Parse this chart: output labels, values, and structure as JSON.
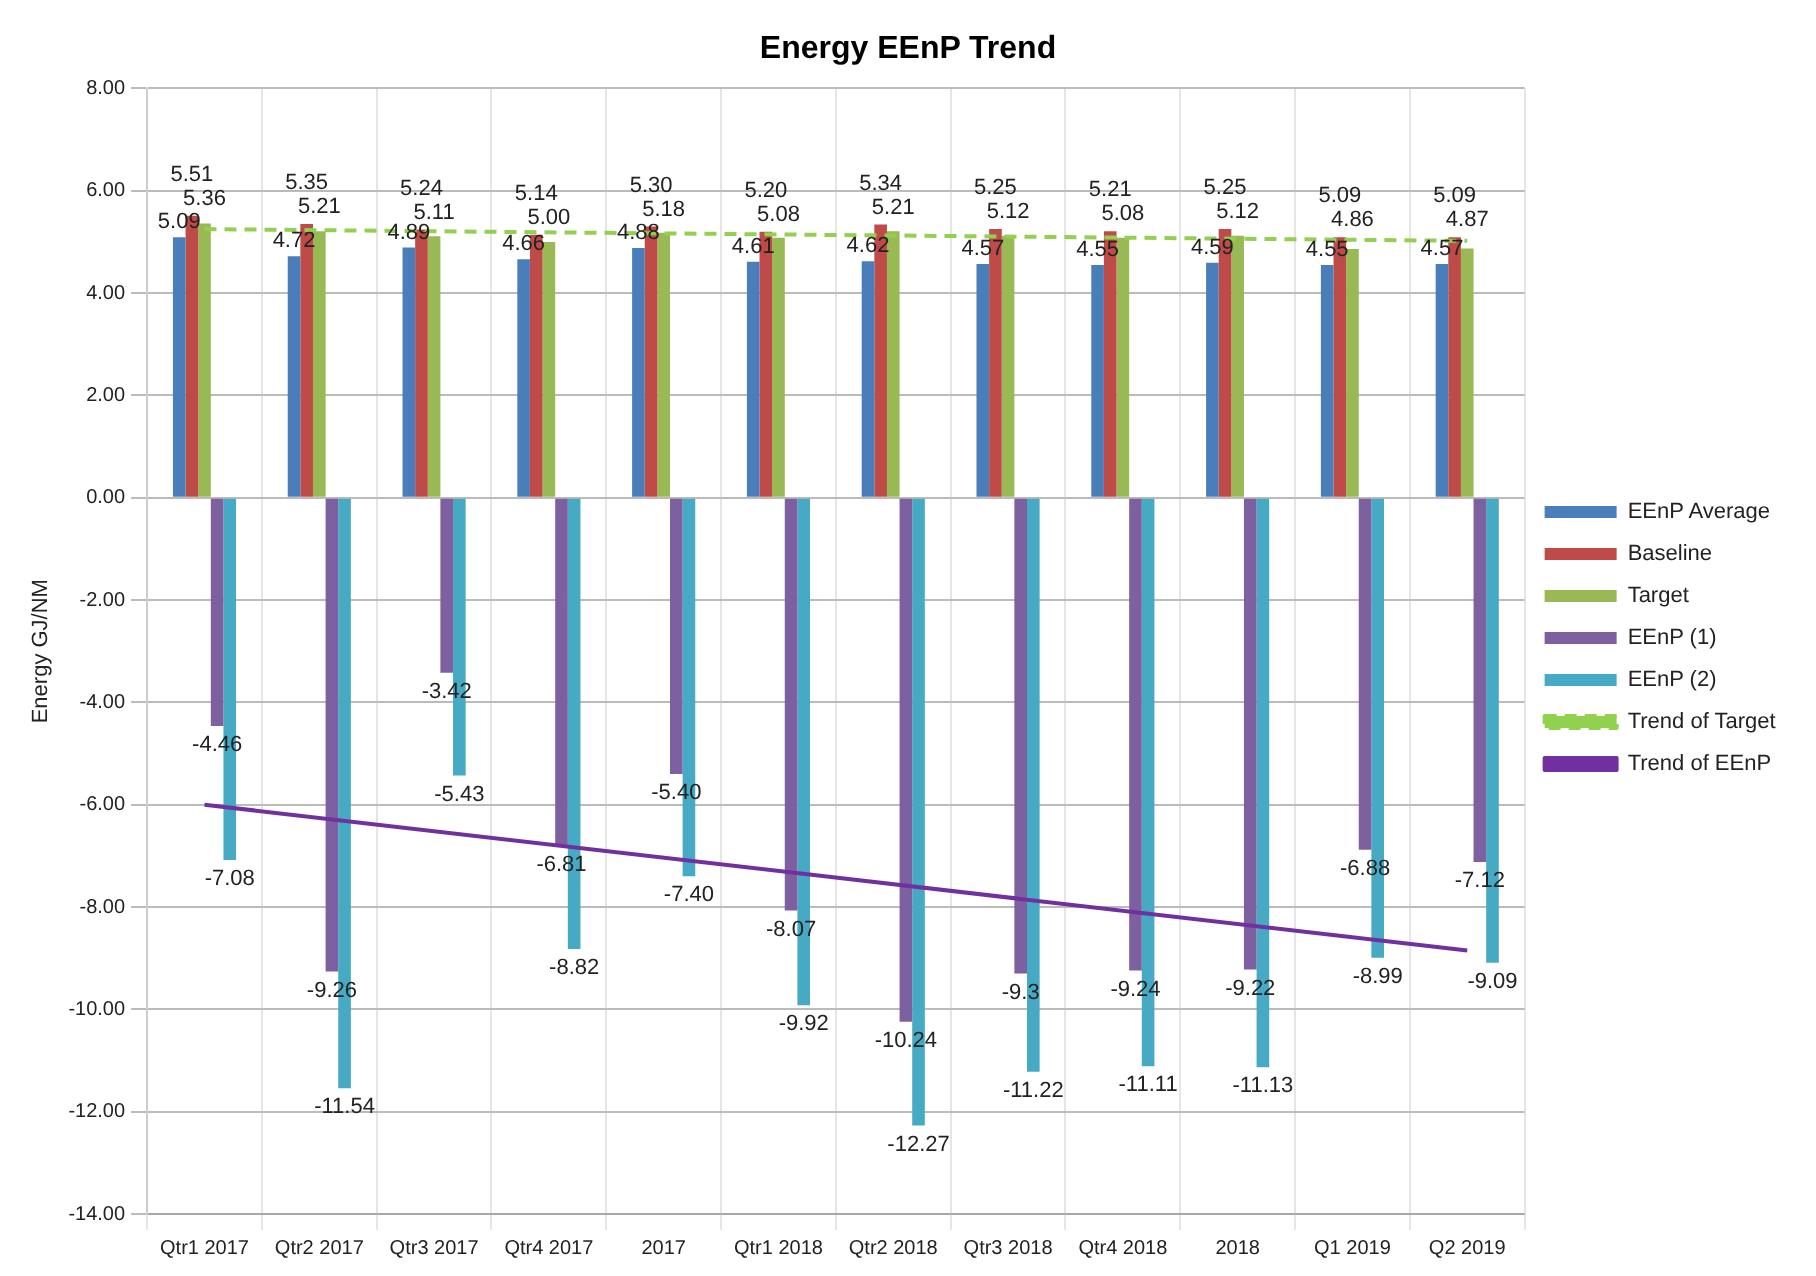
{
  "chart_data": {
    "type": "bar",
    "title": "Energy EEnP Trend",
    "ylabel": "Energy GJ/NM",
    "categories": [
      "Qtr1 2017",
      "Qtr2 2017",
      "Qtr3 2017",
      "Qtr4 2017",
      "2017",
      "Qtr1 2018",
      "Qtr2 2018",
      "Qtr3 2018",
      "Qtr4 2018",
      "2018",
      "Q1 2019",
      "Q2 2019"
    ],
    "series": [
      {
        "name": "EEnP Average",
        "color": "#4a7ebb",
        "values": [
          5.09,
          4.72,
          4.89,
          4.66,
          4.88,
          4.61,
          4.62,
          4.57,
          4.55,
          4.59,
          4.55,
          4.57
        ],
        "value_labels": [
          "5.09",
          "4.72",
          "4.89",
          "4.66",
          "4.88",
          "4.61",
          "4.62",
          "4.57",
          "4.55",
          "4.59",
          "4.55",
          "4.57"
        ]
      },
      {
        "name": "Baseline",
        "color": "#be4b48",
        "values": [
          5.51,
          5.35,
          5.24,
          5.14,
          5.3,
          5.2,
          5.34,
          5.25,
          5.21,
          5.25,
          5.09,
          5.09
        ],
        "value_labels": [
          "5.51",
          "5.35",
          "5.24",
          "5.14",
          "5.30",
          "5.20",
          "5.34",
          "5.25",
          "5.21",
          "5.25",
          "5.09",
          "5.09"
        ]
      },
      {
        "name": "Target",
        "color": "#98b954",
        "values": [
          5.36,
          5.21,
          5.11,
          5.0,
          5.18,
          5.08,
          5.21,
          5.12,
          5.08,
          5.12,
          4.86,
          4.87
        ],
        "value_labels": [
          "5.36",
          "5.21",
          "5.11",
          "5.00",
          "5.18",
          "5.08",
          "5.21",
          "5.12",
          "5.08",
          "5.12",
          "4.86",
          "4.87"
        ]
      },
      {
        "name": "EEnP (1)",
        "color": "#7d60a0",
        "values": [
          -4.46,
          -9.26,
          -3.42,
          -6.81,
          -5.4,
          -8.07,
          -10.24,
          -9.3,
          -9.24,
          -9.22,
          -6.88,
          -7.12
        ],
        "value_labels": [
          "-4.46",
          "-9.26",
          "-3.42",
          "-6.81",
          "-5.40",
          "-8.07",
          "-10.24",
          "-9.3",
          "-9.24",
          "-9.22",
          "-6.88",
          "-7.12"
        ]
      },
      {
        "name": "EEnP (2)",
        "color": "#46aac5",
        "values": [
          -7.08,
          -11.54,
          -5.43,
          -8.82,
          -7.4,
          -9.92,
          -12.27,
          -11.22,
          -11.11,
          -11.13,
          -8.99,
          -9.09
        ],
        "value_labels": [
          "-7.08",
          "-11.54",
          "-5.43",
          "-8.82",
          "-7.40",
          "-9.92",
          "-12.27",
          "-11.22",
          "-11.11",
          "-11.13",
          "-8.99",
          "-9.09"
        ]
      },
      {
        "name": "Trend of Target",
        "type": "line",
        "line_style": "dashed",
        "color": "#92d050",
        "values": [
          5.25,
          null,
          null,
          null,
          null,
          null,
          null,
          null,
          null,
          null,
          null,
          5.02
        ]
      },
      {
        "name": "Trend of EEnP",
        "type": "line",
        "line_style": "solid",
        "color": "#7030a0",
        "values": [
          -6.0,
          null,
          null,
          null,
          null,
          null,
          null,
          null,
          null,
          null,
          null,
          -8.85
        ]
      }
    ],
    "ylim": [
      -14,
      8
    ],
    "yticks": [
      {
        "value": -14,
        "label": "-14.00"
      },
      {
        "value": -12,
        "label": "-12.00"
      },
      {
        "value": -10,
        "label": "-10.00"
      },
      {
        "value": -8,
        "label": "-8.00"
      },
      {
        "value": -6,
        "label": "-6.00"
      },
      {
        "value": -4,
        "label": "-4.00"
      },
      {
        "value": -2,
        "label": "-2.00"
      },
      {
        "value": 0,
        "label": "0.00"
      },
      {
        "value": 2,
        "label": "2.00"
      },
      {
        "value": 4,
        "label": "4.00"
      },
      {
        "value": 6,
        "label": "6.00"
      },
      {
        "value": 8,
        "label": "8.00"
      }
    ],
    "grid": true,
    "legend": "right",
    "marker": "none"
  }
}
